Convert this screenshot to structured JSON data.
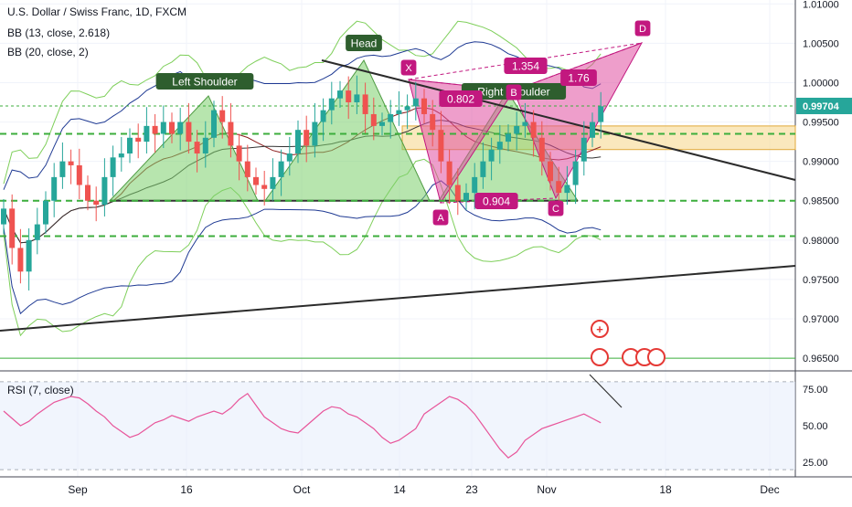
{
  "legend": {
    "symbol": "U.S. Dollar / Swiss Franc, 1D, FXCM",
    "bb1": "BB (13, close, 2.618)",
    "bb2": "BB (20, close, 2)",
    "rsi": "RSI (7, close)"
  },
  "colors": {
    "up": "#26a69a",
    "down": "#ef5350",
    "pattern_green": "#7ccf6c",
    "pattern_magenta": "#e04fa0",
    "guide_green": "#3cae3c",
    "trend": "#2b2b2b",
    "price_tag": "#26a69a",
    "rsi_line": "#e8559a"
  },
  "chart_data": [
    {
      "type": "candlestick",
      "title": "U.S. Dollar / Swiss Franc, 1D, FXCM",
      "x_ticks": [
        "Sep",
        "16",
        "Oct",
        "14",
        "23",
        "Nov",
        "18",
        "Dec"
      ],
      "y_ticks": [
        "1.01000",
        "1.00500",
        "1.00000",
        "0.99500",
        "0.99000",
        "0.98500",
        "0.98000",
        "0.97500",
        "0.97000",
        "0.96500"
      ],
      "ylim": [
        0.9635,
        1.0105
      ],
      "last_price_label": "0.99704",
      "last_price": 0.99704,
      "closes": [
        0.984,
        0.979,
        0.976,
        0.98,
        0.982,
        0.985,
        0.988,
        0.99,
        0.9895,
        0.987,
        0.985,
        0.9845,
        0.988,
        0.9905,
        0.991,
        0.993,
        0.9925,
        0.9945,
        0.9935,
        0.995,
        0.9935,
        0.995,
        0.9925,
        0.991,
        0.993,
        0.9965,
        0.995,
        0.992,
        0.99,
        0.988,
        0.987,
        0.9865,
        0.988,
        0.99,
        0.991,
        0.994,
        0.992,
        0.995,
        0.9965,
        0.998,
        0.999,
        0.9975,
        0.9985,
        0.996,
        0.9945,
        0.995,
        0.996,
        0.9965,
        0.997,
        0.998,
        0.996,
        0.994,
        0.99,
        0.987,
        0.985,
        0.986,
        0.988,
        0.99,
        0.9915,
        0.9925,
        0.9935,
        0.9945,
        0.995,
        0.993,
        0.99,
        0.9875,
        0.986,
        0.987,
        0.99,
        0.993,
        0.995,
        0.997
      ],
      "annotations": {
        "hs_labels": [
          "Left Shoulder",
          "Head",
          "Right Shoulder"
        ],
        "points": [
          "X",
          "A",
          "B",
          "C",
          "D"
        ],
        "ratios": [
          "1.354",
          "0.802",
          "1.76",
          "0.904"
        ]
      },
      "levels": [
        0.99704,
        0.9935,
        0.985,
        0.9805,
        0.965
      ],
      "zone": [
        0.9915,
        0.9945
      ]
    },
    {
      "type": "line",
      "title": "RSI (7, close)",
      "y_ticks": [
        "75.00",
        "50.00",
        "25.00"
      ],
      "ylim": [
        15,
        85
      ],
      "bands": [
        80,
        20
      ],
      "values": [
        60,
        55,
        50,
        53,
        58,
        62,
        66,
        68,
        70,
        69,
        65,
        60,
        56,
        50,
        46,
        42,
        44,
        48,
        52,
        54,
        57,
        55,
        53,
        56,
        58,
        60,
        58,
        62,
        68,
        72,
        64,
        56,
        52,
        48,
        46,
        45,
        50,
        55,
        60,
        63,
        62,
        58,
        56,
        52,
        48,
        42,
        38,
        40,
        44,
        48,
        58,
        62,
        66,
        70,
        68,
        64,
        58,
        50,
        42,
        34,
        28,
        32,
        40,
        44,
        48,
        50,
        52,
        54,
        56,
        58,
        55,
        52
      ]
    }
  ]
}
